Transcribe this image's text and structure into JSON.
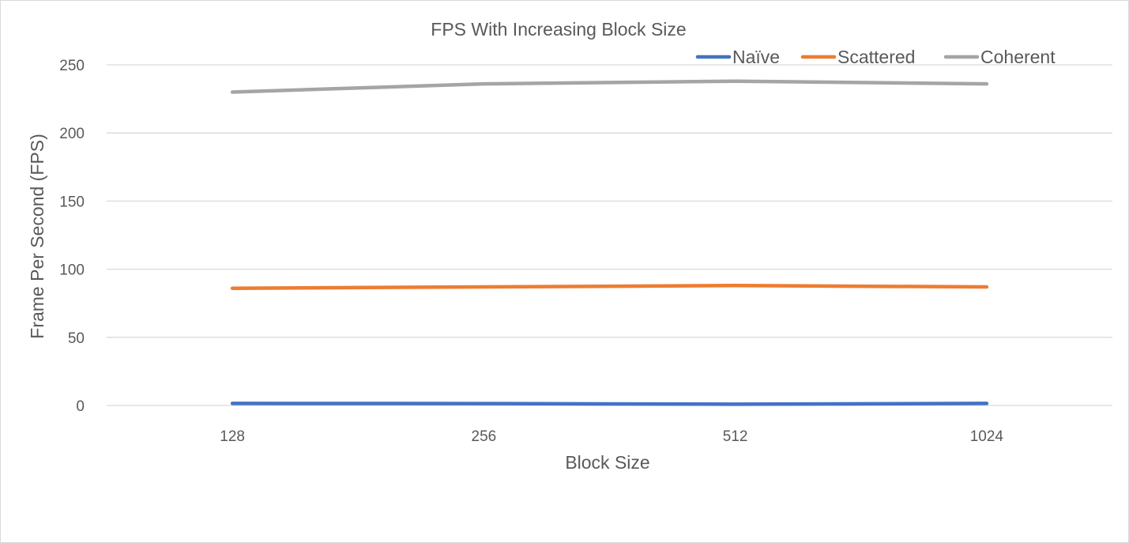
{
  "chart_data": {
    "type": "line",
    "title": "FPS With Increasing Block Size",
    "xlabel": "Block Size",
    "ylabel": "Frame Per Second (FPS)",
    "categories": [
      "128",
      "256",
      "512",
      "1024"
    ],
    "ylim": [
      0,
      250
    ],
    "yticks": [
      0,
      50,
      100,
      150,
      200,
      250
    ],
    "grid": true,
    "legend_position": "top-right",
    "series": [
      {
        "name": "Naïve",
        "color": "#4472c4",
        "values": [
          1.5,
          1.4,
          0.9,
          1.5
        ]
      },
      {
        "name": "Scattered",
        "color": "#ed7d31",
        "values": [
          86,
          87,
          88,
          87
        ]
      },
      {
        "name": "Coherent",
        "color": "#a5a5a5",
        "values": [
          230,
          236,
          238,
          236
        ]
      }
    ]
  }
}
